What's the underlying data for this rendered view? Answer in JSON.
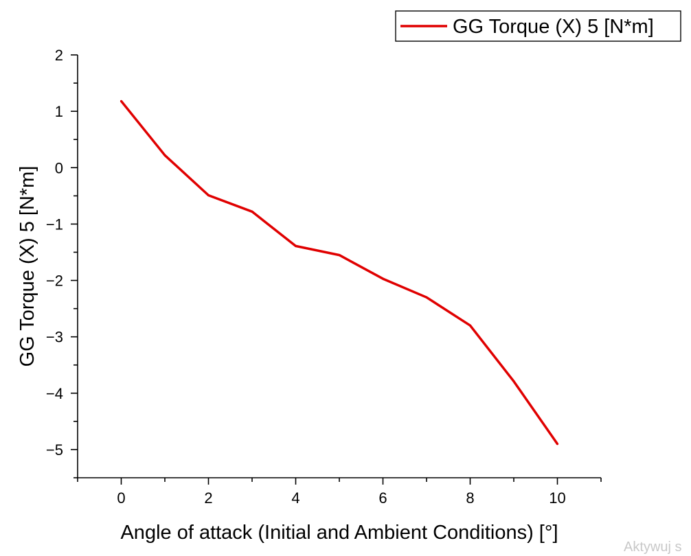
{
  "chart_data": {
    "type": "line",
    "title": "",
    "xlabel": "Angle of attack (Initial and Ambient Conditions) [°]",
    "ylabel": "GG Torque (X) 5 [N*m]",
    "xlim": [
      -1,
      11
    ],
    "ylim": [
      -5.5,
      2
    ],
    "x_ticks": [
      0,
      2,
      4,
      6,
      8,
      10
    ],
    "x_tick_labels": [
      "0",
      "2",
      "4",
      "6",
      "8",
      "10"
    ],
    "y_ticks": [
      2,
      1,
      0,
      -1,
      -2,
      -3,
      -4,
      -5
    ],
    "y_tick_labels": [
      "2",
      "1",
      "0",
      "−1",
      "−2",
      "−3",
      "−4",
      "−5"
    ],
    "grid": false,
    "legend_position": "top-right",
    "series": [
      {
        "name": "GG Torque (X) 5 [N*m]",
        "color": "#e00000",
        "x": [
          0,
          1,
          2,
          3,
          4,
          5,
          6,
          7,
          8,
          9,
          10
        ],
        "y": [
          1.18,
          0.22,
          -0.49,
          -0.78,
          -1.39,
          -1.55,
          -1.97,
          -2.3,
          -2.8,
          -3.79,
          -4.9
        ]
      }
    ]
  },
  "watermark": "Aktywuj s"
}
